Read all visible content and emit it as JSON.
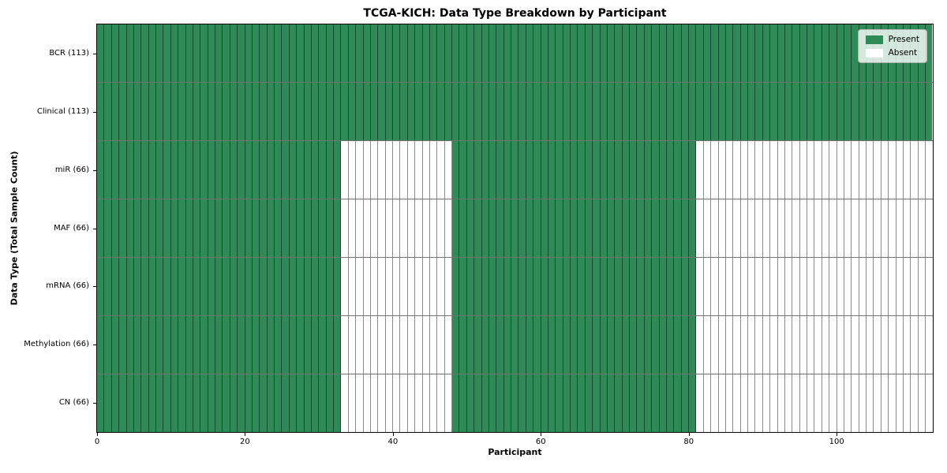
{
  "title": "TCGA-KICH: Data Type Breakdown by Participant",
  "axes": {
    "x_label": "Participant",
    "y_label": "Data Type (Total Sample Count)",
    "x_ticks": [
      0,
      20,
      40,
      60,
      80,
      100
    ],
    "x_range": [
      0,
      113
    ]
  },
  "legend": {
    "items": [
      {
        "label": "Present",
        "color": "#2e8b57"
      },
      {
        "label": "Absent",
        "color": "#ffffff"
      }
    ]
  },
  "colors": {
    "present": "#2e8b57",
    "absent": "#ffffff",
    "cell_edge": "rgba(0,0,0,0.45)",
    "plot_border": "#000000",
    "legend_bg": "rgba(255,255,255,0.8)"
  },
  "chart_data": {
    "type": "heatmap",
    "title": "TCGA-KICH: Data Type Breakdown by Participant",
    "xlabel": "Participant",
    "ylabel": "Data Type (Total Sample Count)",
    "x_range": [
      0,
      113
    ],
    "n_participants": 113,
    "x_tick_values": [
      0,
      20,
      40,
      60,
      80,
      100
    ],
    "legend_entries": [
      "Present",
      "Absent"
    ],
    "legend_position": "upper right",
    "grid": "cell-outlines",
    "rows": [
      {
        "label": "BCR (113)",
        "data_type": "BCR",
        "present_count": 113,
        "present_ranges": [
          [
            0,
            113
          ]
        ]
      },
      {
        "label": "Clinical (113)",
        "data_type": "Clinical",
        "present_count": 113,
        "present_ranges": [
          [
            0,
            113
          ]
        ]
      },
      {
        "label": "miR (66)",
        "data_type": "miR",
        "present_count": 66,
        "present_ranges": [
          [
            0,
            33
          ],
          [
            48,
            81
          ]
        ]
      },
      {
        "label": "MAF (66)",
        "data_type": "MAF",
        "present_count": 66,
        "present_ranges": [
          [
            0,
            33
          ],
          [
            48,
            81
          ]
        ]
      },
      {
        "label": "mRNA (66)",
        "data_type": "mRNA",
        "present_count": 66,
        "present_ranges": [
          [
            0,
            33
          ],
          [
            48,
            81
          ]
        ]
      },
      {
        "label": "Methylation (66)",
        "data_type": "Methylation",
        "present_count": 66,
        "present_ranges": [
          [
            0,
            33
          ],
          [
            48,
            81
          ]
        ]
      },
      {
        "label": "CN (66)",
        "data_type": "CN",
        "present_count": 66,
        "present_ranges": [
          [
            0,
            33
          ],
          [
            48,
            81
          ]
        ]
      }
    ]
  }
}
